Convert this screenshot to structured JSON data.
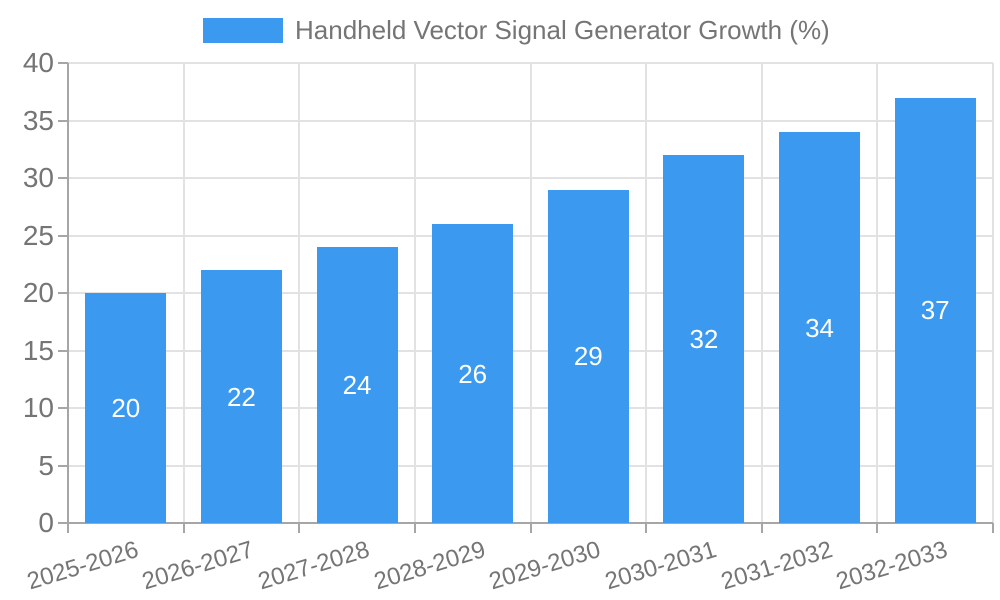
{
  "chart_data": {
    "type": "bar",
    "title": "Handheld Vector Signal Generator Growth (%)",
    "legend": [
      "Handheld Vector Signal Generator Growth (%)"
    ],
    "legend_position": "top",
    "categories": [
      "2025-2026",
      "2026-2027",
      "2027-2028",
      "2028-2029",
      "2029-2030",
      "2030-2031",
      "2031-2032",
      "2032-2033"
    ],
    "series": [
      {
        "name": "Handheld Vector Signal Generator Growth (%)",
        "values": [
          20,
          22,
          24,
          26,
          29,
          32,
          34,
          37
        ]
      }
    ],
    "bar_labels": [
      "20",
      "22",
      "24",
      "26",
      "29",
      "32",
      "34",
      "37"
    ],
    "xlabel": "",
    "ylabel": "",
    "ylim": [
      0,
      40
    ],
    "yticks": [
      0,
      5,
      10,
      15,
      20,
      25,
      30,
      35,
      40
    ],
    "grid": true,
    "x_label_rotation_deg": -17,
    "colors": {
      "bar": "#3B99F0",
      "bar_value_text": "#FFFFFF",
      "axis_text": "#757575",
      "axis_line": "#A6A6A6",
      "gridline": "#E2E2E2",
      "background": "#FFFFFF"
    }
  }
}
